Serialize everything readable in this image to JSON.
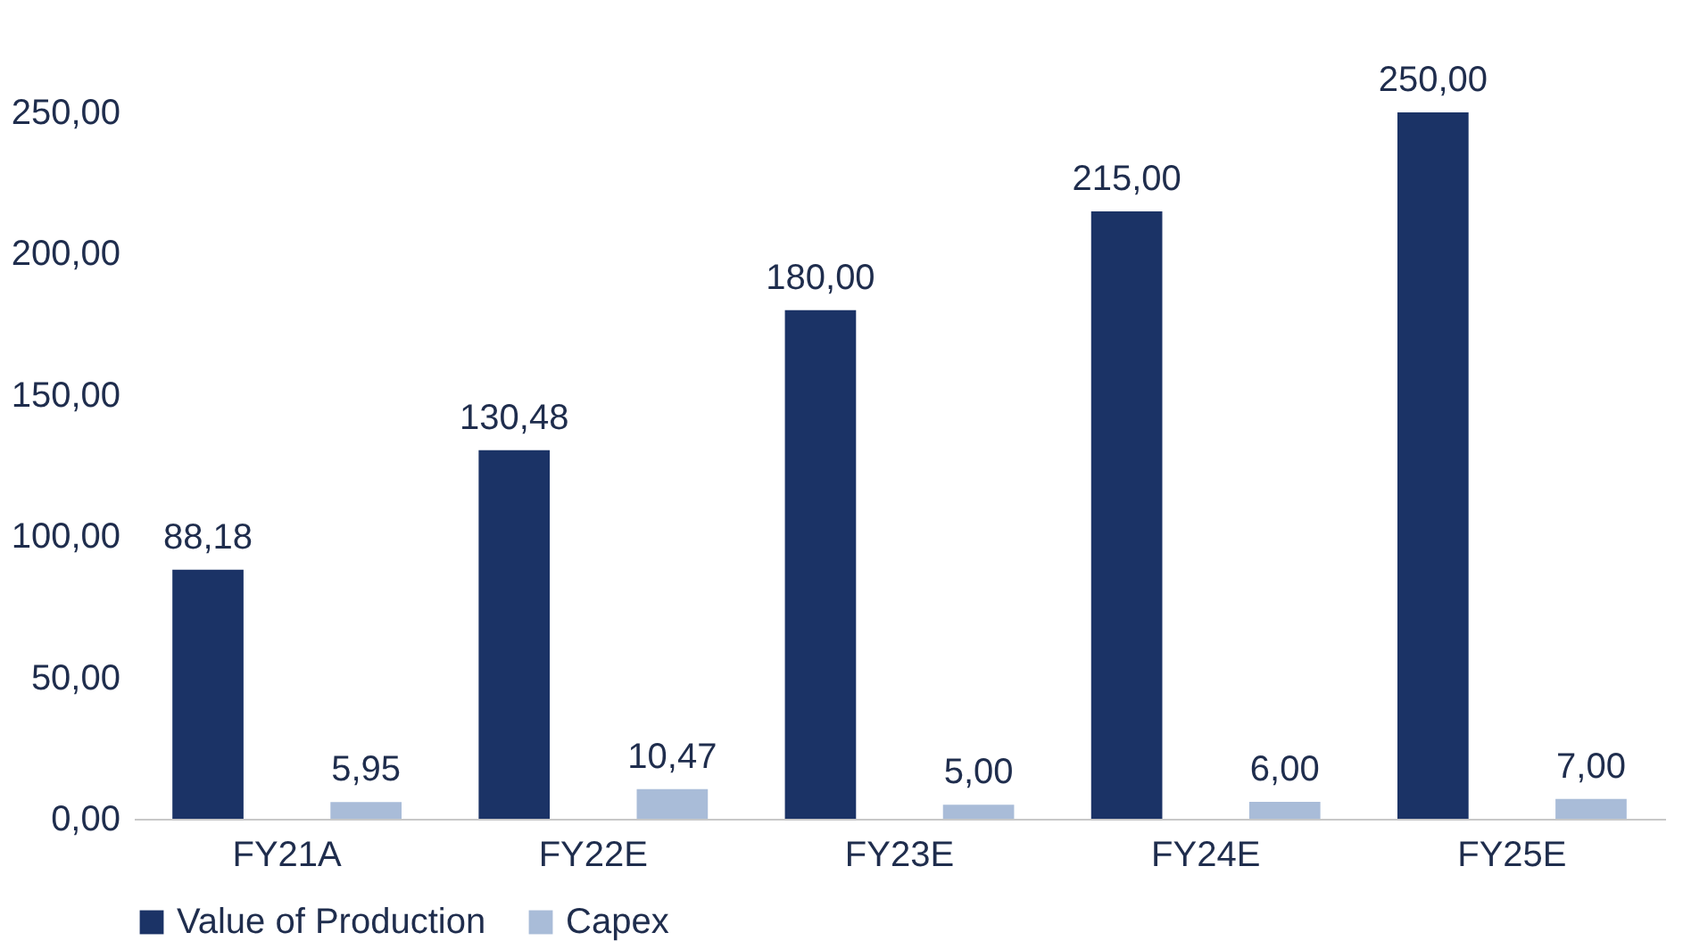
{
  "chart_data": {
    "type": "bar",
    "categories": [
      "FY21A",
      "FY22E",
      "FY23E",
      "FY24E",
      "FY25E"
    ],
    "series": [
      {
        "name": "Value of Production",
        "color": "#1b3366",
        "values": [
          88.18,
          130.48,
          180.0,
          215.0,
          250.0
        ],
        "value_labels": [
          "88,18",
          "130,48",
          "180,00",
          "215,00",
          "250,00"
        ]
      },
      {
        "name": "Capex",
        "color": "#a9bcd8",
        "values": [
          5.95,
          10.47,
          5.0,
          6.0,
          7.0
        ],
        "value_labels": [
          "5,95",
          "10,47",
          "5,00",
          "6,00",
          "7,00"
        ]
      }
    ],
    "ylim": [
      0,
      250
    ],
    "yticks": [
      {
        "value": 0,
        "label": "0,00"
      },
      {
        "value": 50,
        "label": "50,00"
      },
      {
        "value": 100,
        "label": "100,00"
      },
      {
        "value": 150,
        "label": "150,00"
      },
      {
        "value": 200,
        "label": "200,00"
      },
      {
        "value": 250,
        "label": "250,00"
      }
    ],
    "grid": false,
    "legend": "bottom"
  }
}
